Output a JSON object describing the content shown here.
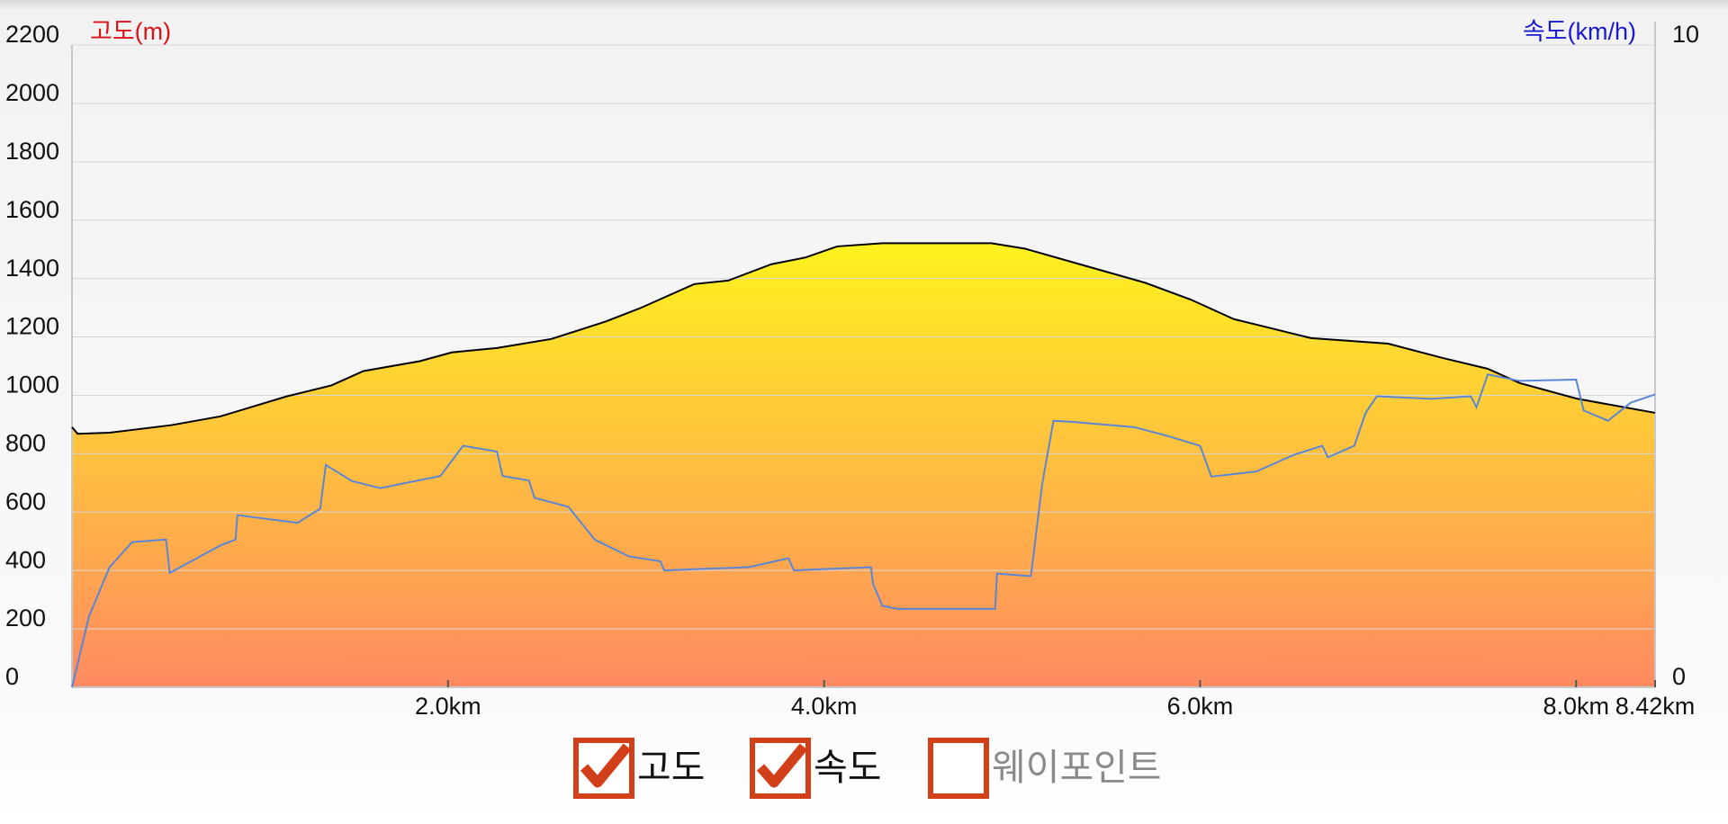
{
  "chart_data": {
    "type": "area-line",
    "xlim": [
      0,
      8.42
    ],
    "xticks": [
      {
        "value": 2,
        "label": "2.0km"
      },
      {
        "value": 4,
        "label": "4.0km"
      },
      {
        "value": 6,
        "label": "6.0km"
      },
      {
        "value": 8,
        "label": "8.0km"
      },
      {
        "value": 8.42,
        "label": "8.42km"
      }
    ],
    "ylabel": "고도(m)",
    "ylim": [
      0,
      2200
    ],
    "yticks": [
      0,
      200,
      400,
      600,
      800,
      1000,
      1200,
      1400,
      1600,
      1800,
      2000,
      2200
    ],
    "y2label": "속도(km/h)",
    "y2lim": [
      0,
      10
    ],
    "y2ticks": [
      0,
      10
    ],
    "grid": true,
    "series": [
      {
        "name": "고도",
        "color": "#000000",
        "fill_top": "#fff21e",
        "fill_bottom": "#ff8a62",
        "x": [
          0,
          0.03,
          0.2,
          0.53,
          0.79,
          1.14,
          1.38,
          1.55,
          1.85,
          2.02,
          2.26,
          2.55,
          2.84,
          3.02,
          3.31,
          3.49,
          3.72,
          3.9,
          4.07,
          4.31,
          4.89,
          5.07,
          5.36,
          5.71,
          5.95,
          6.18,
          6.59,
          7.0,
          7.29,
          7.53,
          7.7,
          8.0,
          8.42
        ],
        "values": [
          891,
          868,
          872,
          898,
          928,
          996,
          1034,
          1083,
          1117,
          1147,
          1162,
          1193,
          1253,
          1298,
          1381,
          1393,
          1449,
          1472,
          1510,
          1521,
          1521,
          1502,
          1449,
          1385,
          1328,
          1261,
          1196,
          1177,
          1128,
          1091,
          1042,
          989,
          940
        ]
      },
      {
        "name": "속도",
        "color": "#5b86d6",
        "axis": "y2",
        "x": [
          0,
          0.09,
          0.2,
          0.32,
          0.5,
          0.52,
          0.79,
          0.87,
          0.88,
          1.2,
          1.32,
          1.35,
          1.49,
          1.64,
          1.96,
          2.08,
          2.26,
          2.29,
          2.43,
          2.46,
          2.64,
          2.78,
          2.96,
          3.13,
          3.15,
          3.6,
          3.81,
          3.84,
          4.25,
          4.26,
          4.31,
          4.39,
          4.91,
          4.92,
          5.1,
          5.16,
          5.22,
          5.33,
          5.65,
          5.83,
          6.0,
          6.06,
          6.3,
          6.5,
          6.65,
          6.68,
          6.82,
          6.88,
          6.94,
          7.23,
          7.44,
          7.47,
          7.53,
          7.7,
          8.0,
          8.04,
          8.17,
          8.29,
          8.42
        ],
        "values": [
          0,
          1.1,
          1.87,
          2.26,
          2.3,
          1.78,
          2.21,
          2.3,
          2.68,
          2.56,
          2.78,
          3.46,
          3.21,
          3.1,
          3.29,
          3.76,
          3.67,
          3.29,
          3.22,
          2.95,
          2.81,
          2.3,
          2.04,
          1.96,
          1.82,
          1.87,
          2.01,
          1.82,
          1.87,
          1.61,
          1.27,
          1.22,
          1.22,
          1.77,
          1.73,
          3.16,
          4.15,
          4.13,
          4.05,
          3.91,
          3.76,
          3.28,
          3.36,
          3.62,
          3.76,
          3.58,
          3.76,
          4.27,
          4.53,
          4.49,
          4.53,
          4.36,
          4.87,
          4.77,
          4.79,
          4.31,
          4.15,
          4.43,
          4.56
        ]
      }
    ]
  },
  "toggles": [
    {
      "label": "고도",
      "checked": true
    },
    {
      "label": "속도",
      "checked": true
    },
    {
      "label": "웨이포인트",
      "checked": false
    }
  ]
}
